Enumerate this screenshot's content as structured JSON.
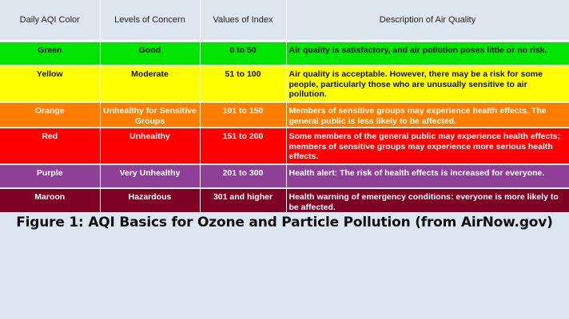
{
  "table": {
    "headers": [
      "Daily AQI Color",
      "Levels of Concern",
      "Values of Index",
      "Description of Air Quality"
    ],
    "rows": [
      {
        "color": "Green",
        "level": "Good",
        "values": "0 to 50",
        "description": "Air quality is satisfactory, and air pollution poses little or no risk.",
        "bg": "#00e400",
        "text_color": "#111111"
      },
      {
        "color": "Yellow",
        "level": "Moderate",
        "values": "51 to 100",
        "description": "Air quality is acceptable. However, there may be a risk for some people, particularly those who are unusually sensitive to air pollution.",
        "bg": "#ffff00",
        "text_color": "#111111"
      },
      {
        "color": "Orange",
        "level": "Unhealthy for Sensitive Groups",
        "values": "101 to 150",
        "description": "Members of sensitive groups may experience health effects. The general public is less likely to be affected.",
        "bg": "#ff7e00",
        "text_color": "#ffffff"
      },
      {
        "color": "Red",
        "level": "Unhealthy",
        "values": "151 to 200",
        "description": "Some members of the general public may experience health effects; members of sensitive groups may experience more serious health effects.",
        "bg": "#ff0000",
        "text_color": "#ffffff"
      },
      {
        "color": "Purple",
        "level": "Very Unhealthy",
        "values": "201 to 300",
        "description": "Health alert: The risk of health effects is increased for everyone.",
        "bg": "#8f3f97",
        "text_color": "#ffffff"
      },
      {
        "color": "Maroon",
        "level": "Hazardous",
        "values": "301 and higher",
        "description": "Health warning of emergency conditions: everyone is more likely to be affected.",
        "bg": "#7e0023",
        "text_color": "#ffffff"
      }
    ]
  },
  "caption": "Figure 1: AQI Basics for Ozone and Particle Pollution (from AirNow.gov)"
}
